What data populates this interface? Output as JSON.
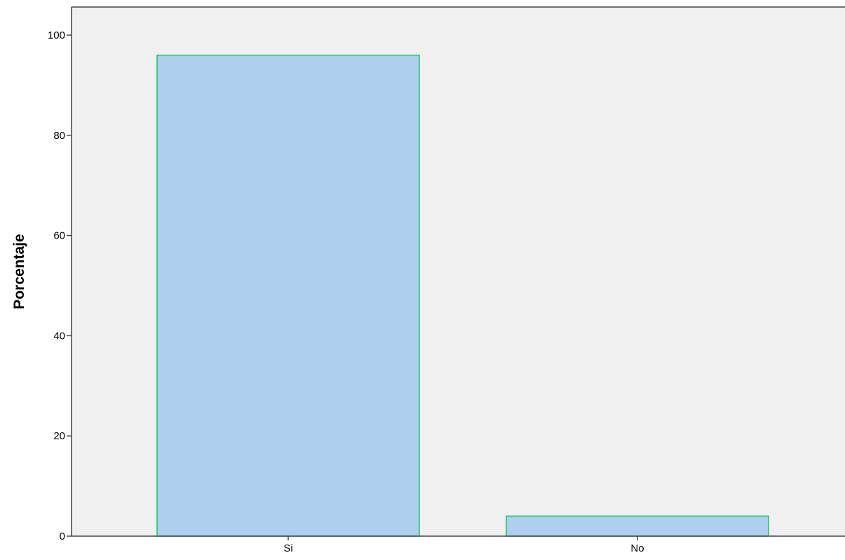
{
  "chart_data": {
    "type": "bar",
    "categories": [
      "Si",
      "No"
    ],
    "values": [
      96,
      4
    ],
    "xlabel": "",
    "ylabel": "Porcentaje",
    "ylim": [
      0,
      100
    ],
    "yticks": [
      0,
      20,
      40,
      60,
      80,
      100
    ],
    "grid": false,
    "legend": "none"
  },
  "colors": {
    "plot_background": "#f0f0f0",
    "bar_fill": "#aecfee",
    "bar_stroke": "#1fc46a",
    "axis": "#444444"
  }
}
